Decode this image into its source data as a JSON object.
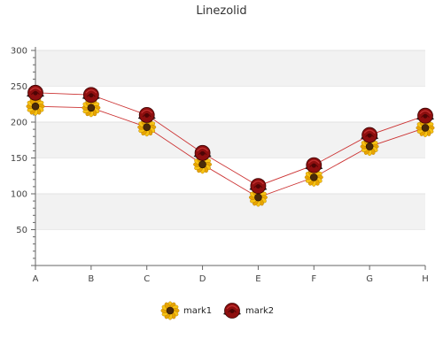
{
  "chart_data": {
    "type": "line",
    "title": "Linezolid",
    "xlabel": "",
    "ylabel": "",
    "categories": [
      "A",
      "B",
      "C",
      "D",
      "E",
      "F",
      "G",
      "H"
    ],
    "ylim": [
      0,
      300
    ],
    "yticks": [
      50,
      100,
      150,
      200,
      250,
      300
    ],
    "grid": "horizontal bands",
    "legend_position": "bottom-center",
    "series": [
      {
        "name": "mark1",
        "values": [
          222,
          220,
          193,
          141,
          95,
          123,
          166,
          192
        ],
        "color": "#cc3333",
        "marker": "sunflower-icon"
      },
      {
        "name": "mark2",
        "values": [
          241,
          238,
          210,
          157,
          111,
          140,
          182,
          209
        ],
        "color": "#cc3333",
        "marker": "rose-icon"
      }
    ]
  }
}
